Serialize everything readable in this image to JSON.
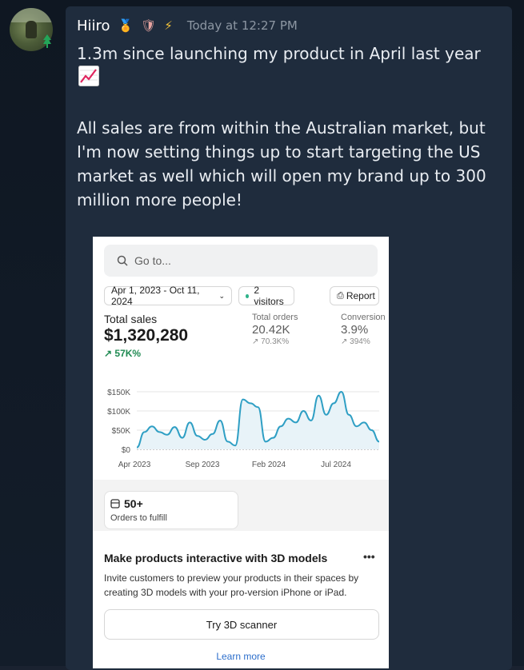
{
  "message": {
    "author": "Hiiro",
    "badges": [
      "medal-icon",
      "shield-icon",
      "bolt-icon"
    ],
    "timestamp": "Today at 12:27 PM",
    "line1": "1.3m since launching my product in April last year",
    "emoji": "chart-increasing-icon",
    "paragraph2": "All sales are from within the Australian market, but I'm now setting things up to start targeting the US market as well which will open my brand up to 300 million more people!"
  },
  "screenshot": {
    "search_placeholder": "Go to...",
    "date_range": "Apr 1, 2023 - Oct 11, 2024",
    "visitors": "2 visitors",
    "report": "Report",
    "total_sales_label": "Total sales",
    "total_sales_value": "$1,320,280",
    "total_sales_change": "57K%",
    "total_orders_label": "Total orders",
    "total_orders_value": "20.42K",
    "total_orders_change": "70.3K%",
    "conversion_label": "Conversion",
    "conversion_value": "3.9%",
    "conversion_change": "394%",
    "orders_to_fulfill_count": "50+",
    "orders_to_fulfill_label": "Orders to fulfill",
    "promo_title": "Make products interactive with 3D models",
    "promo_more": "•••",
    "promo_desc": "Invite customers to preview your products in their spaces by creating 3D models with your pro-version iPhone or iPad.",
    "scanner_button": "Try 3D scanner",
    "learn_more": "Learn more"
  },
  "chart_data": {
    "type": "line",
    "y_ticks": [
      "$150K",
      "$100K",
      "$50K",
      "$0"
    ],
    "x_ticks": [
      "Apr 2023",
      "Sep 2023",
      "Feb 2024",
      "Jul 2024"
    ],
    "ylim": [
      0,
      175000
    ],
    "series": [
      {
        "values": [
          5000,
          45000,
          60000,
          45000,
          38000,
          58000,
          30000,
          70000,
          35000,
          25000,
          40000,
          75000,
          20000,
          10000,
          130000,
          120000,
          110000,
          20000,
          30000,
          60000,
          80000,
          70000,
          100000,
          75000,
          140000,
          90000,
          120000,
          150000,
          90000,
          60000,
          70000,
          50000,
          20000
        ]
      }
    ]
  }
}
